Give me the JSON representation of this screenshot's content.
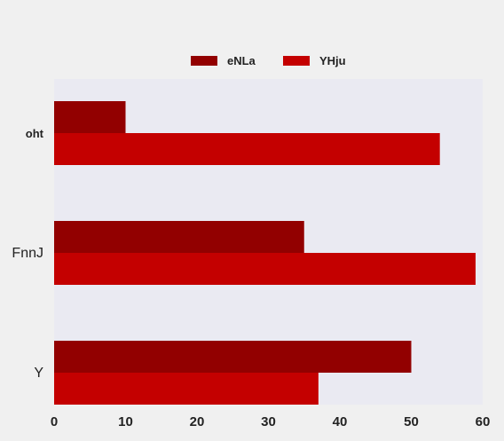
{
  "chart_data": {
    "type": "bar",
    "orientation": "horizontal",
    "categories": [
      "oht",
      "FnnJ",
      "Y"
    ],
    "series": [
      {
        "name": "eNLa",
        "values": [
          10,
          35,
          50
        ],
        "color": "#920000"
      },
      {
        "name": "YHju",
        "values": [
          54,
          59,
          37
        ],
        "color": "#c40000"
      }
    ],
    "xlim": [
      0,
      60
    ],
    "xticks": [
      0,
      10,
      20,
      30,
      40,
      50,
      60
    ],
    "legend_position": "top-center",
    "grid": false,
    "plot_background": "#eaeaf2",
    "page_background": "#f0f0f0"
  }
}
